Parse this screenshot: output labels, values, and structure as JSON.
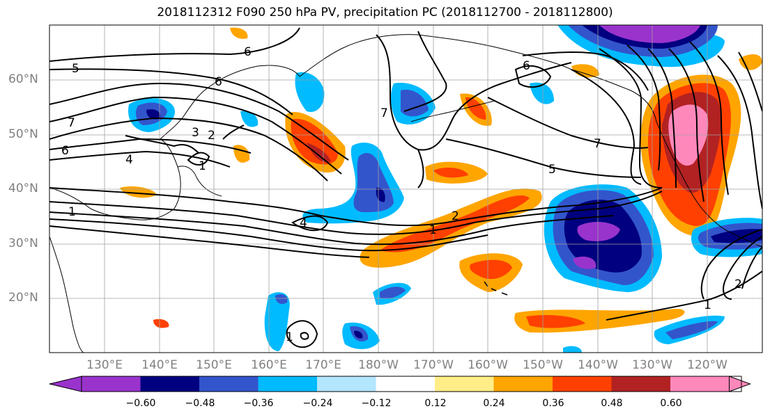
{
  "title": "2018112312 F090 250 hPa PV, precipitation PC (2018112700 - 2018112800)",
  "map": {
    "lat_labels": [
      "60°N",
      "50°N",
      "40°N",
      "30°N",
      "20°N"
    ],
    "lon_labels": [
      "130°E",
      "140°E",
      "150°E",
      "160°E",
      "170°E",
      "180°W",
      "170°W",
      "160°W",
      "150°W",
      "140°W",
      "130°W",
      "120°W"
    ],
    "contour_labels": [
      "6",
      "5",
      "6",
      "7",
      "6",
      "4",
      "3",
      "2",
      "1",
      "7",
      "6",
      "7",
      "5",
      "2",
      "1",
      "4",
      "1",
      "1",
      "2",
      "1"
    ]
  },
  "colorbar": {
    "ticks": [
      "−0.60",
      "−0.48",
      "−0.36",
      "−0.24",
      "−0.12",
      "0.12",
      "0.24",
      "0.36",
      "0.48",
      "0.60"
    ],
    "colors": [
      "#9933cc",
      "#000080",
      "#3355cc",
      "#00bbff",
      "#b3e6ff",
      "#ffffff",
      "#ffee88",
      "#ffa500",
      "#ff4000",
      "#b22222",
      "#ff88bb"
    ]
  }
}
